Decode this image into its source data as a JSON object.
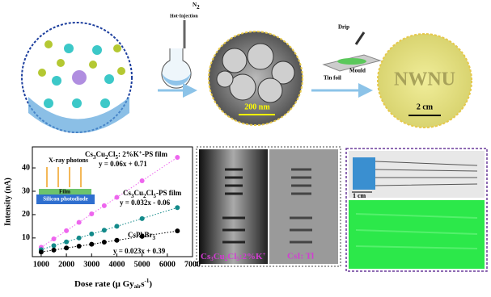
{
  "panels": {
    "synthesis": {
      "method": "Hot-Injection",
      "gas": [
        "N",
        "2"
      ]
    },
    "tem": {
      "scale": "200 nm"
    },
    "mould": {
      "drip": "Drip",
      "mould": "Mould",
      "foil": "Tin foil"
    },
    "film": {
      "text": "NWNU",
      "scale": "2 cm"
    },
    "xray": {
      "left": [
        "Cs",
        "3",
        "Cu",
        "2",
        "Cl",
        "5",
        ":2%K",
        "+"
      ],
      "right": "CsI: Tl"
    },
    "flex": {
      "scale": "1 cm"
    }
  },
  "chart_data": {
    "type": "scatter",
    "xlabel": [
      "Dose rate (μ Gy",
      "air",
      "s",
      "-1",
      ")"
    ],
    "ylabel": "Intensity (nA)",
    "x": [
      1000,
      1500,
      2000,
      2500,
      3000,
      3500,
      4000,
      5000,
      6400
    ],
    "xlim": [
      650,
      7000
    ],
    "xticks": [
      1000,
      2000,
      3000,
      4000,
      5000,
      6000,
      7000
    ],
    "ylim": [
      2,
      49
    ],
    "yticks": [
      10,
      20,
      30,
      40
    ],
    "series": [
      {
        "name": [
          "Cs",
          "3",
          "Cu",
          "2",
          "Cl",
          "5",
          ": 2%K",
          "+",
          "-PS film"
        ],
        "color": "#ee66ee",
        "fit": "y = 0.06x + 0.71",
        "values": [
          6,
          9.6,
          13.1,
          16.7,
          20.3,
          23.8,
          27.4,
          34.5,
          44.5
        ]
      },
      {
        "name": [
          "Cs",
          "3",
          "Cu",
          "2",
          "Cl",
          "5",
          "-PS film"
        ],
        "color": "#138a8a",
        "fit": "y = 0.032x - 0.06",
        "values": [
          5,
          6.7,
          8.3,
          10,
          11.7,
          13.3,
          15,
          18.3,
          23
        ]
      },
      {
        "name": [
          "CsPbBr",
          "3"
        ],
        "color": "#000000",
        "fit": "y = 0.023x + 0.39",
        "values": [
          4,
          4.8,
          5.7,
          6.5,
          7.3,
          8.2,
          9,
          10.7,
          13
        ]
      }
    ],
    "inset": {
      "photons": "X-ray photons",
      "film": "Film",
      "detector": "Silicon photodiode"
    }
  }
}
